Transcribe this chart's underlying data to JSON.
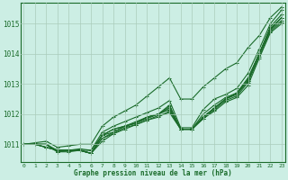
{
  "title": "Graphe pression niveau de la mer (hPa)",
  "background_color": "#cceee4",
  "grid_color": "#aaccbb",
  "line_color": "#1a6b2a",
  "x_ticks": [
    0,
    1,
    2,
    3,
    4,
    5,
    6,
    7,
    8,
    9,
    10,
    11,
    12,
    13,
    14,
    15,
    16,
    17,
    18,
    19,
    20,
    21,
    22,
    23
  ],
  "y_ticks": [
    1011,
    1012,
    1013,
    1014,
    1015
  ],
  "ylim": [
    1010.4,
    1015.7
  ],
  "xlim": [
    -0.3,
    23.3
  ],
  "series": [
    [
      1011.0,
      1011.0,
      1011.0,
      1010.8,
      1010.8,
      1010.8,
      1010.8,
      1011.3,
      1011.5,
      1011.6,
      1011.7,
      1011.9,
      1012.0,
      1012.2,
      1011.5,
      1011.5,
      1011.9,
      1012.2,
      1012.5,
      1012.7,
      1013.2,
      1014.0,
      1014.9,
      1015.3
    ],
    [
      1011.0,
      1011.0,
      1010.9,
      1010.8,
      1010.8,
      1010.8,
      1010.7,
      1011.2,
      1011.4,
      1011.6,
      1011.7,
      1011.9,
      1012.0,
      1012.3,
      1011.5,
      1011.5,
      1011.9,
      1012.2,
      1012.5,
      1012.7,
      1013.1,
      1014.0,
      1014.85,
      1015.2
    ],
    [
      1011.0,
      1011.0,
      1010.9,
      1010.8,
      1010.8,
      1010.8,
      1010.7,
      1011.3,
      1011.4,
      1011.6,
      1011.7,
      1011.85,
      1012.0,
      1012.15,
      1011.5,
      1011.5,
      1011.9,
      1012.2,
      1012.5,
      1012.65,
      1013.1,
      1014.0,
      1014.8,
      1015.1
    ],
    [
      1011.0,
      1011.0,
      1010.9,
      1010.8,
      1010.8,
      1010.8,
      1010.7,
      1011.2,
      1011.35,
      1011.55,
      1011.65,
      1011.8,
      1011.9,
      1012.1,
      1011.5,
      1011.5,
      1011.85,
      1012.15,
      1012.45,
      1012.6,
      1013.05,
      1013.9,
      1014.75,
      1015.05
    ],
    [
      1011.0,
      1011.0,
      1011.0,
      1010.75,
      1010.8,
      1010.8,
      1010.7,
      1011.3,
      1011.5,
      1011.6,
      1011.75,
      1011.9,
      1012.0,
      1012.25,
      1011.5,
      1011.5,
      1012.0,
      1012.3,
      1012.55,
      1012.7,
      1013.15,
      1014.0,
      1014.8,
      1015.2
    ],
    [
      1011.0,
      1011.0,
      1011.0,
      1010.75,
      1010.75,
      1010.8,
      1010.7,
      1011.1,
      1011.35,
      1011.5,
      1011.65,
      1011.8,
      1011.95,
      1012.05,
      1011.5,
      1011.5,
      1011.85,
      1012.1,
      1012.4,
      1012.55,
      1012.95,
      1013.85,
      1014.7,
      1015.0
    ],
    [
      1011.0,
      1011.0,
      1011.0,
      1010.75,
      1010.8,
      1010.85,
      1010.8,
      1011.4,
      1011.6,
      1011.75,
      1011.9,
      1012.05,
      1012.2,
      1012.45,
      1011.55,
      1011.55,
      1012.15,
      1012.5,
      1012.65,
      1012.85,
      1013.35,
      1014.15,
      1015.0,
      1015.45
    ]
  ],
  "series_top": [
    1011.0,
    1011.05,
    1011.1,
    1010.9,
    1010.95,
    1011.0,
    1011.0,
    1011.6,
    1011.9,
    1012.1,
    1012.3,
    1012.6,
    1012.9,
    1013.2,
    1012.5,
    1012.5,
    1012.9,
    1013.2,
    1013.5,
    1013.7,
    1014.2,
    1014.6,
    1015.2,
    1015.55
  ],
  "marker": "+",
  "markersize": 3,
  "linewidth": 0.8
}
